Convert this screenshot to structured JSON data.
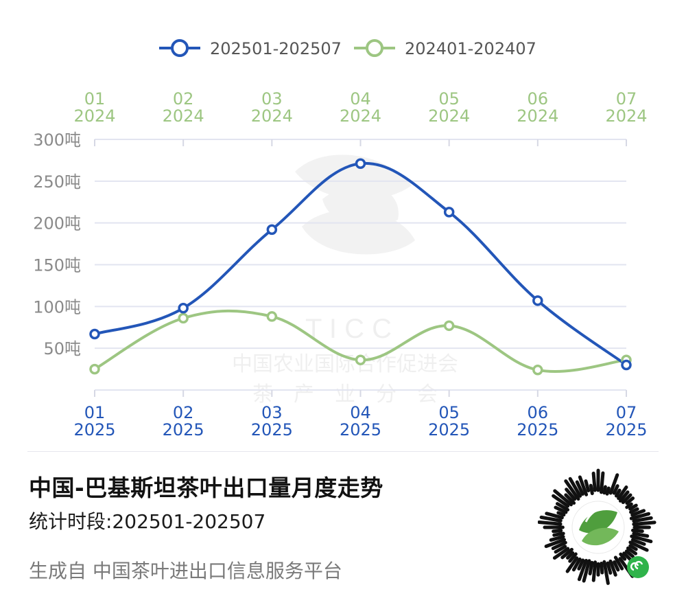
{
  "chart_data": {
    "type": "line",
    "x_bottom": [
      [
        "01",
        "2025"
      ],
      [
        "02",
        "2025"
      ],
      [
        "03",
        "2025"
      ],
      [
        "04",
        "2025"
      ],
      [
        "05",
        "2025"
      ],
      [
        "06",
        "2025"
      ],
      [
        "07",
        "2025"
      ]
    ],
    "x_top": [
      [
        "01",
        "2024"
      ],
      [
        "02",
        "2024"
      ],
      [
        "03",
        "2024"
      ],
      [
        "04",
        "2024"
      ],
      [
        "05",
        "2024"
      ],
      [
        "06",
        "2024"
      ],
      [
        "07",
        "2024"
      ]
    ],
    "y_ticks": [
      "50吨",
      "100吨",
      "150吨",
      "200吨",
      "250吨",
      "300吨"
    ],
    "y_tick_values": [
      50,
      100,
      150,
      200,
      250,
      300
    ],
    "ylim": [
      0,
      300
    ],
    "grid": true,
    "legend_position": "top-center",
    "series": [
      {
        "name": "202501-202507",
        "color": "#2356b8",
        "values": [
          67,
          98,
          192,
          271,
          213,
          107,
          30
        ]
      },
      {
        "name": "202401-202407",
        "color": "#9dc682",
        "values": [
          25,
          86,
          88,
          36,
          77,
          24,
          36
        ]
      }
    ]
  },
  "watermark": {
    "line1": "T I C C",
    "line2": "中国农业国际合作促进会",
    "line3": "茶　产　业　分　会"
  },
  "title": "中国-巴基斯坦茶叶出口量月度走势",
  "subtitle": "统计时段:202501-202507",
  "footer": "生成自 中国茶叶进出口信息服务平台",
  "colors": {
    "axis_label": "#8a8a8a",
    "grid": "#e2e4f0",
    "bottom_axis": "#2356b8",
    "top_axis": "#9dc682"
  }
}
